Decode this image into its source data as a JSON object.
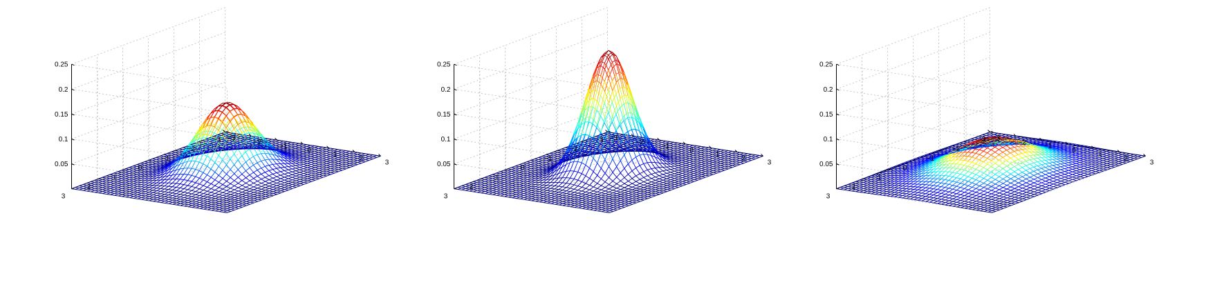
{
  "chart_data": [
    {
      "type": "surface",
      "function": "bivariate normal density",
      "sigma": 0.8,
      "peak_z": 0.14,
      "xlim": [
        -3,
        3
      ],
      "ylim": [
        -3,
        3
      ],
      "zlim": [
        0,
        0.25
      ],
      "x_ticks": [
        "−3",
        "−2",
        "−1",
        "0",
        "1",
        "2",
        "3"
      ],
      "y_ticks": [
        "−3",
        "−2",
        "−1",
        "0",
        "1",
        "2",
        "3"
      ],
      "z_ticks": [
        "0.05",
        "0.1",
        "0.15",
        "0.2",
        "0.25"
      ],
      "grid": true,
      "colormap": "jet"
    },
    {
      "type": "surface",
      "function": "bivariate normal density",
      "sigma": 0.65,
      "peak_z": 0.245,
      "xlim": [
        -3,
        3
      ],
      "ylim": [
        -3,
        3
      ],
      "zlim": [
        0,
        0.25
      ],
      "x_ticks": [
        "−3",
        "−2",
        "−1",
        "0",
        "1",
        "2",
        "3"
      ],
      "y_ticks": [
        "−3",
        "−2",
        "−1",
        "0",
        "1",
        "2",
        "3"
      ],
      "z_ticks": [
        "0.05",
        "0.1",
        "0.15",
        "0.2",
        "0.25"
      ],
      "grid": true,
      "colormap": "jet"
    },
    {
      "type": "surface",
      "function": "bivariate normal density",
      "sigma": 1.15,
      "peak_z": 0.067,
      "xlim": [
        -3,
        3
      ],
      "ylim": [
        -3,
        3
      ],
      "zlim": [
        0,
        0.25
      ],
      "x_ticks": [
        "−3",
        "−2",
        "−1",
        "0",
        "1",
        "2",
        "3"
      ],
      "y_ticks": [
        "−3",
        "−2",
        "−1",
        "0",
        "1",
        "2",
        "3"
      ],
      "z_ticks": [
        "0.05",
        "0.1",
        "0.15",
        "0.2",
        "0.25"
      ],
      "grid": true,
      "colormap": "jet"
    }
  ]
}
